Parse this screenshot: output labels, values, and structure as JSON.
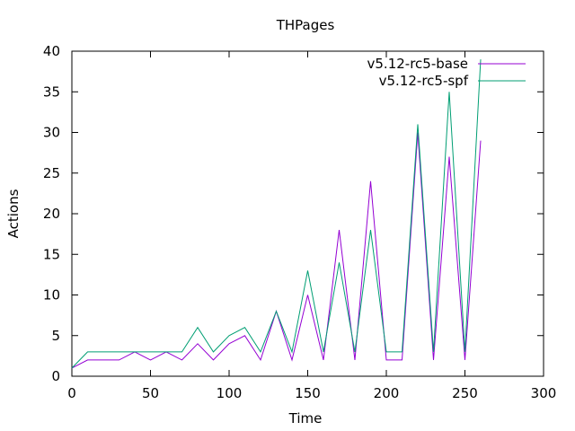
{
  "chart_data": {
    "type": "line",
    "title": "THPages",
    "xlabel": "Time",
    "ylabel": "Actions",
    "xlim": [
      0,
      300
    ],
    "ylim": [
      0,
      40
    ],
    "xticks": [
      0,
      50,
      100,
      150,
      200,
      250,
      300
    ],
    "yticks": [
      0,
      5,
      10,
      15,
      20,
      25,
      30,
      35,
      40
    ],
    "grid": false,
    "legend_position": "top-right",
    "series": [
      {
        "name": "v5.12-rc5-base",
        "color": "#9400d3",
        "x": [
          0,
          10,
          20,
          30,
          40,
          50,
          60,
          70,
          80,
          90,
          100,
          110,
          120,
          130,
          140,
          150,
          160,
          170,
          180,
          190,
          200,
          210,
          220,
          230,
          240,
          250,
          260
        ],
        "y": [
          1,
          2,
          2,
          2,
          3,
          2,
          3,
          2,
          4,
          2,
          4,
          5,
          2,
          8,
          2,
          10,
          2,
          18,
          2,
          24,
          2,
          2,
          30,
          2,
          27,
          2,
          29
        ]
      },
      {
        "name": "v5.12-rc5-spf",
        "color": "#009e73",
        "x": [
          0,
          10,
          20,
          30,
          40,
          50,
          60,
          70,
          80,
          90,
          100,
          110,
          120,
          130,
          140,
          150,
          160,
          170,
          180,
          190,
          200,
          210,
          220,
          230,
          240,
          250,
          260
        ],
        "y": [
          1,
          3,
          3,
          3,
          3,
          3,
          3,
          3,
          6,
          3,
          5,
          6,
          3,
          8,
          3,
          13,
          3,
          14,
          3,
          18,
          3,
          3,
          31,
          3,
          35,
          3,
          39
        ]
      }
    ]
  }
}
